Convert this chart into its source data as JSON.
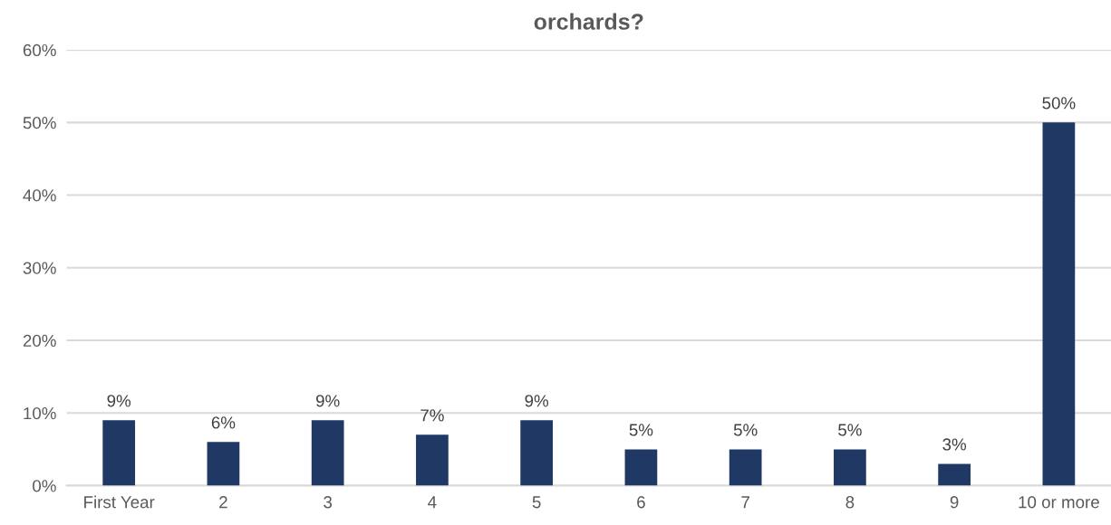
{
  "chart_data": {
    "type": "bar",
    "title": "orchards?",
    "categories": [
      "First Year",
      "2",
      "3",
      "4",
      "5",
      "6",
      "7",
      "8",
      "9",
      "10 or more"
    ],
    "values": [
      9,
      6,
      9,
      7,
      9,
      5,
      5,
      5,
      3,
      50
    ],
    "value_labels": [
      "9%",
      "6%",
      "9%",
      "7%",
      "9%",
      "5%",
      "5%",
      "5%",
      "3%",
      "50%"
    ],
    "color": "#1f3864",
    "ylim": [
      0,
      60
    ],
    "yticks": [
      {
        "value": 0,
        "label": "0%"
      },
      {
        "value": 10,
        "label": "10%"
      },
      {
        "value": 20,
        "label": "20%"
      },
      {
        "value": 30,
        "label": "30%"
      },
      {
        "value": 40,
        "label": "40%"
      },
      {
        "value": 50,
        "label": "50%"
      },
      {
        "value": 60,
        "label": "60%"
      }
    ],
    "grid": "y",
    "legend": false
  }
}
